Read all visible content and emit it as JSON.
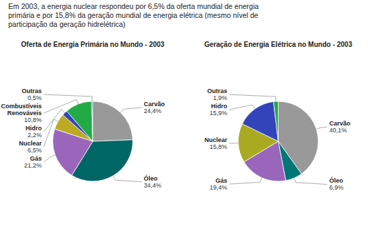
{
  "chart_data": [
    {
      "type": "pie",
      "title": "Oferta de Energia Primária no Mundo - 2003",
      "annotations": [
        "Em 2003, a energia nuclear respondeu por 6,5% da oferta mundial de energia\nprimária e por 15,8% da geração mundial de energia elétrica (mesmo nível de\nparticipação da geração hidrelétrica)"
      ],
      "categories": [
        "Carvão",
        "Óleo",
        "Gás",
        "Nuclear",
        "Hidro",
        "Combustíveis\nRenováveis",
        "Outras"
      ],
      "values": [
        24.4,
        34.4,
        21.2,
        6.5,
        2.2,
        10.8,
        0.5
      ],
      "value_labels": [
        "24,4%",
        "34,4%",
        "21,2%",
        "6,5%",
        "2,2%",
        "10,8%",
        "0,5%"
      ],
      "colors": [
        "#999999",
        "#006666",
        "#9966bb",
        "#bbaa22",
        "#3344bb",
        "#22aa44",
        "#4466aa"
      ],
      "data_labels": true
    },
    {
      "type": "pie",
      "title": "Geração de Energia Elétrica no Mundo - 2003",
      "categories": [
        "Carvão",
        "Óleo",
        "Gás",
        "Nuclear",
        "Hidro",
        "Outras"
      ],
      "values": [
        40.1,
        6.9,
        19.4,
        15.8,
        15.9,
        1.9
      ],
      "value_labels": [
        "40,1%",
        "6,9%",
        "19,4%",
        "15,8%",
        "15,9%",
        "1,9%"
      ],
      "colors": [
        "#999999",
        "#007777",
        "#9966bb",
        "#aaaa22",
        "#3344bb",
        "#22aa44"
      ],
      "data_labels": true
    }
  ]
}
